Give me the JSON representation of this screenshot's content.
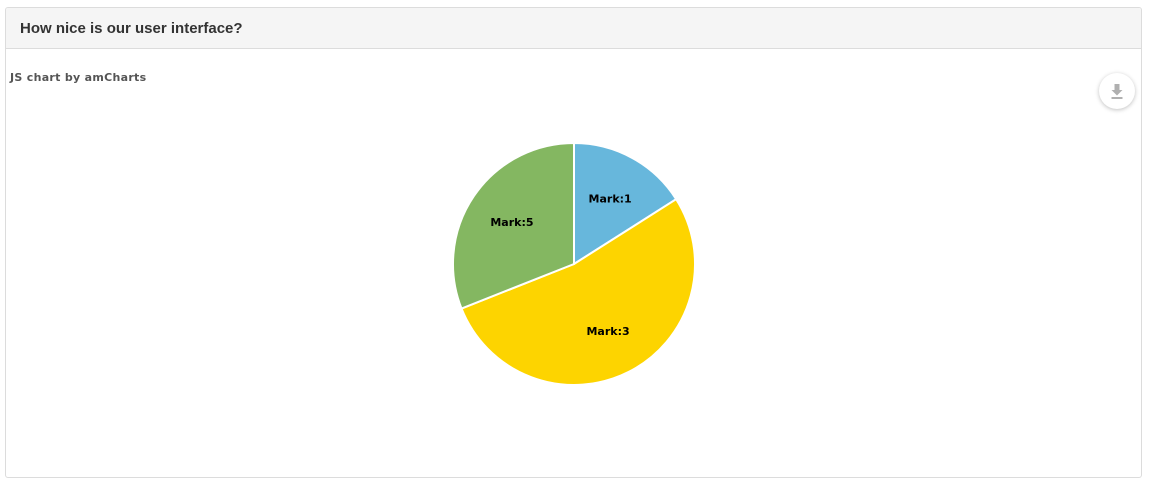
{
  "panel": {
    "title": "How nice is our user interface?"
  },
  "credit": "JS chart by amCharts",
  "export_icon": "download-icon",
  "chart_data": {
    "type": "pie",
    "title": "",
    "slices": [
      {
        "label": "Mark:1",
        "value": 16,
        "color": "#67b7dc"
      },
      {
        "label": "Mark:3",
        "value": 53,
        "color": "#fdd400"
      },
      {
        "label": "Mark:5",
        "value": 31,
        "color": "#84b761"
      }
    ],
    "start_angle_deg": 0,
    "direction": "clockwise",
    "legend": "none",
    "slice_border_color": "#ffffff"
  }
}
